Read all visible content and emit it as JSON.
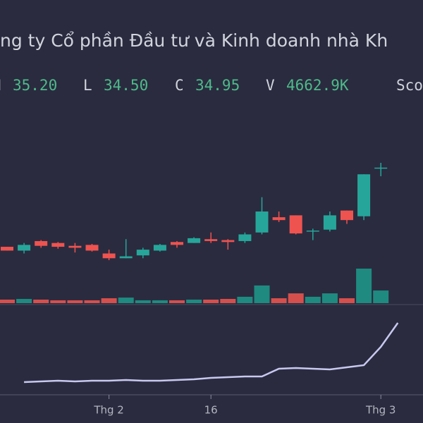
{
  "chart_data": {
    "type": "candlestick",
    "title": "ng ty Cổ phần Đầu tư và Kinh doanh nhà Kh",
    "legend": [
      {
        "label": "H",
        "value": "35.20"
      },
      {
        "label": "L",
        "value": "34.50"
      },
      {
        "label": "C",
        "value": "34.95"
      },
      {
        "label": "V",
        "value": "4662.9K"
      },
      {
        "label": "Sco"
      }
    ],
    "categories": [
      null,
      null,
      null,
      null,
      null,
      null,
      "Thg 2",
      null,
      null,
      null,
      null,
      null,
      "16",
      null,
      null,
      null,
      null,
      null,
      null,
      null,
      null,
      null,
      "Thg 3"
    ],
    "open": [
      30.8,
      30.6,
      31.1,
      31.0,
      30.85,
      30.9,
      30.45,
      30.2,
      30.35,
      30.6,
      31.05,
      31.0,
      31.2,
      31.15,
      31.1,
      31.55,
      32.35,
      32.45,
      31.6,
      31.7,
      32.7,
      32.4,
      34.95
    ],
    "high": [
      30.8,
      31.0,
      31.15,
      31.05,
      31.0,
      30.95,
      30.65,
      31.2,
      30.75,
      30.95,
      31.1,
      31.3,
      31.55,
      31.2,
      31.55,
      33.4,
      32.65,
      32.45,
      31.75,
      32.65,
      32.7,
      34.6,
      35.2
    ],
    "low": [
      30.6,
      30.45,
      30.75,
      30.7,
      30.5,
      30.55,
      30.1,
      30.2,
      30.2,
      30.55,
      30.75,
      31.0,
      31.0,
      30.65,
      31.0,
      31.45,
      32.1,
      31.45,
      31.15,
      31.6,
      32.0,
      32.2,
      34.5
    ],
    "close": [
      30.6,
      30.9,
      30.85,
      30.8,
      30.75,
      30.6,
      30.2,
      30.3,
      30.65,
      30.9,
      30.9,
      31.25,
      31.1,
      31.05,
      31.45,
      32.65,
      32.2,
      31.5,
      31.65,
      32.45,
      32.2,
      34.6,
      34.95
    ],
    "volume": [
      1300,
      1550,
      1300,
      1050,
      1050,
      1050,
      1800,
      2050,
      1050,
      1050,
      1050,
      1300,
      1300,
      1550,
      2350,
      6500,
      1800,
      3600,
      2350,
      3600,
      1800,
      12700,
      4662.9
    ],
    "indicator": [
      1,
      2,
      3,
      2,
      3,
      3,
      4,
      3,
      3,
      4,
      5,
      7,
      8,
      9,
      9,
      20,
      21,
      20,
      19,
      22,
      25,
      51,
      85
    ],
    "up_color": "#26a69a",
    "down_color": "#ef5350",
    "indicator_color": "#c9c8f0"
  }
}
